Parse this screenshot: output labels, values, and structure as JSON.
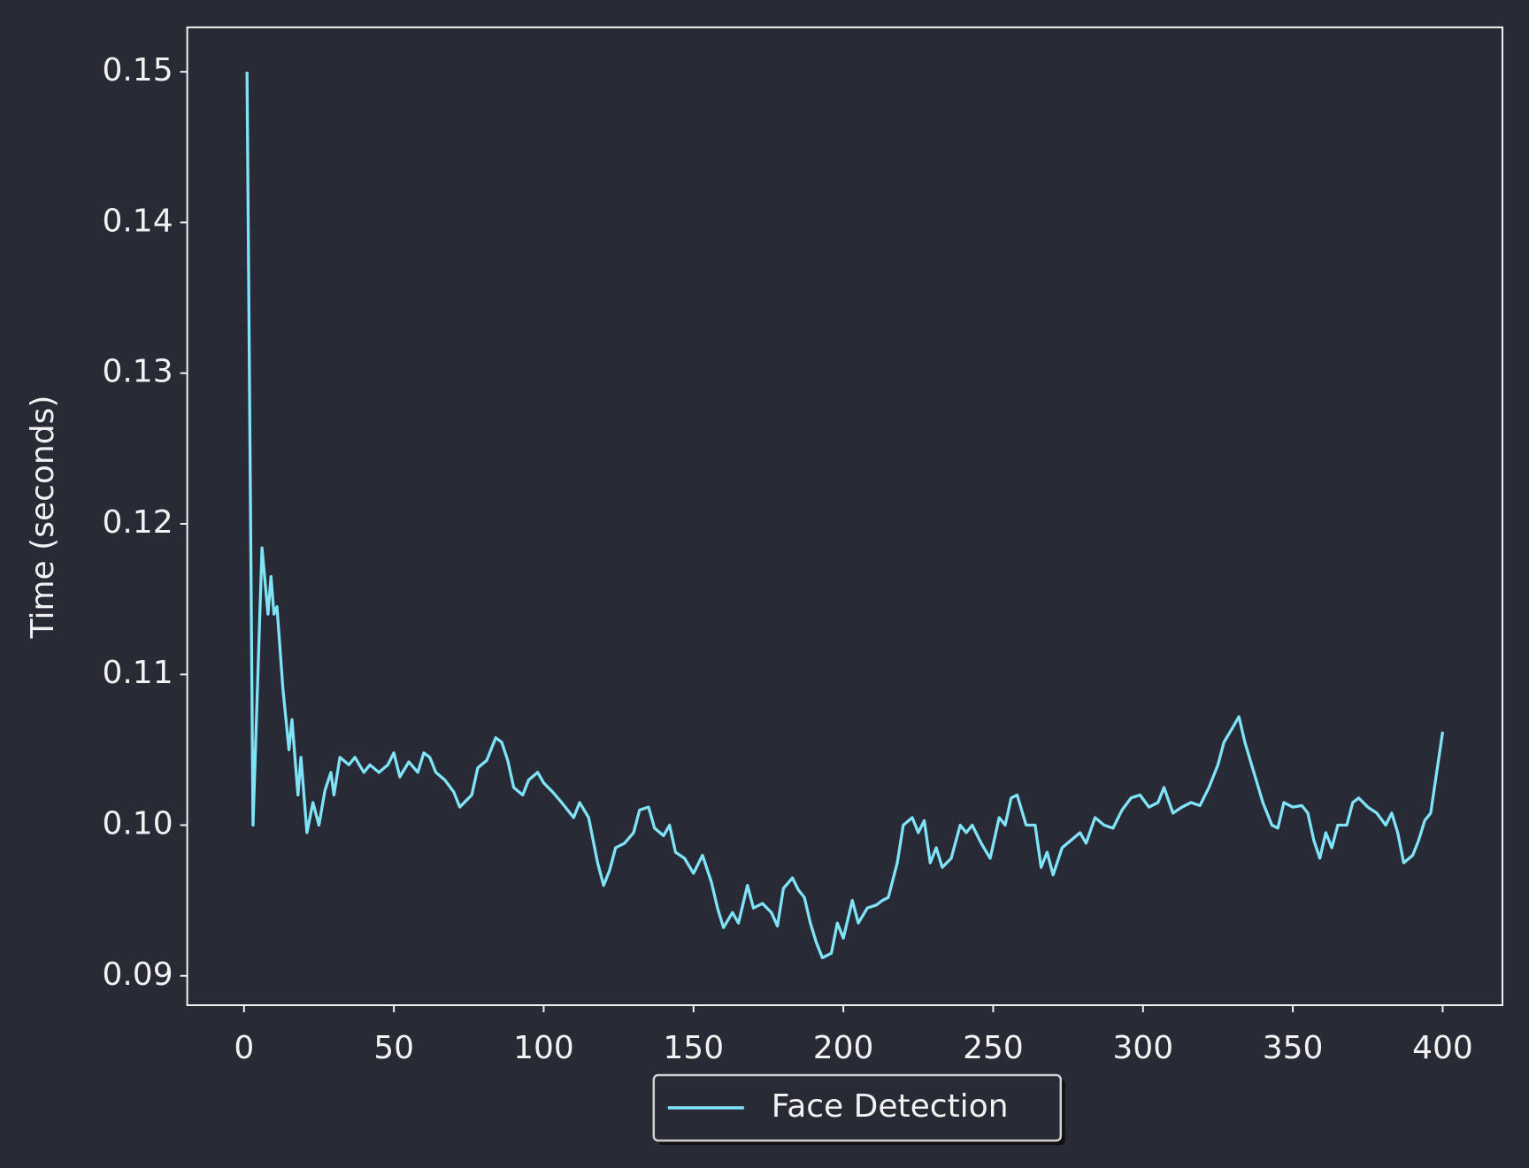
{
  "chart_data": {
    "type": "line",
    "y_label": "Time (seconds)",
    "x": [
      1,
      3,
      6,
      8,
      9,
      10,
      11,
      13,
      15,
      16,
      18,
      19,
      21,
      23,
      25,
      27,
      29,
      30,
      32,
      35,
      37,
      40,
      42,
      45,
      48,
      50,
      52,
      55,
      58,
      60,
      62,
      64,
      67,
      70,
      72,
      76,
      78,
      81,
      84,
      86,
      88,
      90,
      93,
      95,
      98,
      100,
      103,
      106,
      108,
      110,
      112,
      115,
      118,
      120,
      122,
      124,
      127,
      130,
      132,
      135,
      137,
      140,
      142,
      144,
      147,
      150,
      153,
      156,
      158,
      160,
      163,
      165,
      168,
      170,
      173,
      176,
      178,
      180,
      183,
      185,
      187,
      189,
      191,
      193,
      196,
      198,
      200,
      203,
      205,
      208,
      211,
      213,
      215,
      218,
      220,
      223,
      225,
      227,
      229,
      231,
      233,
      236,
      239,
      241,
      243,
      246,
      249,
      252,
      254,
      256,
      258,
      261,
      264,
      266,
      268,
      270,
      273,
      276,
      279,
      281,
      284,
      287,
      290,
      293,
      296,
      299,
      302,
      305,
      307,
      310,
      313,
      316,
      319,
      322,
      325,
      327,
      330,
      332,
      334,
      337,
      340,
      343,
      345,
      347,
      350,
      353,
      355,
      357,
      359,
      361,
      363,
      365,
      368,
      370,
      372,
      375,
      378,
      381,
      383,
      385,
      387,
      390,
      392,
      394,
      396,
      398,
      400
    ],
    "series": [
      {
        "name": "Face Detection",
        "color": "#80e4f8",
        "values": [
          0.15,
          0.1,
          0.1184,
          0.114,
          0.1165,
          0.114,
          0.1145,
          0.109,
          0.105,
          0.107,
          0.102,
          0.1045,
          0.0995,
          0.1015,
          0.1,
          0.1023,
          0.1035,
          0.102,
          0.1045,
          0.104,
          0.1045,
          0.1035,
          0.104,
          0.1035,
          0.104,
          0.1048,
          0.1032,
          0.1042,
          0.1035,
          0.1048,
          0.1045,
          0.1035,
          0.103,
          0.1022,
          0.1012,
          0.102,
          0.1038,
          0.1043,
          0.1058,
          0.1055,
          0.1043,
          0.1025,
          0.102,
          0.103,
          0.1035,
          0.1028,
          0.1022,
          0.1015,
          0.101,
          0.1005,
          0.1015,
          0.1005,
          0.0975,
          0.096,
          0.097,
          0.0985,
          0.0988,
          0.0995,
          0.101,
          0.1012,
          0.0998,
          0.0993,
          0.1,
          0.0982,
          0.0978,
          0.0968,
          0.098,
          0.0962,
          0.0945,
          0.0932,
          0.0942,
          0.0935,
          0.096,
          0.0945,
          0.0948,
          0.0942,
          0.0933,
          0.0958,
          0.0965,
          0.0957,
          0.0952,
          0.0935,
          0.0922,
          0.0912,
          0.0915,
          0.0935,
          0.0925,
          0.095,
          0.0935,
          0.0945,
          0.0947,
          0.095,
          0.0952,
          0.0975,
          0.1,
          0.1005,
          0.0995,
          0.1003,
          0.0975,
          0.0985,
          0.0972,
          0.0978,
          0.1,
          0.0995,
          0.1,
          0.0988,
          0.0978,
          0.1005,
          0.1,
          0.1018,
          0.102,
          0.1,
          0.1,
          0.0972,
          0.0982,
          0.0967,
          0.0985,
          0.099,
          0.0995,
          0.0988,
          0.1005,
          0.1,
          0.0998,
          0.101,
          0.1018,
          0.102,
          0.1012,
          0.1015,
          0.1025,
          0.1008,
          0.1012,
          0.1015,
          0.1013,
          0.1025,
          0.104,
          0.1055,
          0.1065,
          0.1072,
          0.1055,
          0.1035,
          0.1015,
          0.1,
          0.0998,
          0.1015,
          0.1012,
          0.1013,
          0.1008,
          0.099,
          0.0978,
          0.0995,
          0.0985,
          0.1,
          0.1,
          0.1015,
          0.1018,
          0.1012,
          0.1008,
          0.1,
          0.1008,
          0.0995,
          0.0975,
          0.098,
          0.099,
          0.1003,
          0.1008,
          0.1035,
          0.1062
        ]
      }
    ],
    "xlim": [
      -18.95,
      419.95
    ],
    "ylim": [
      0.08805,
      0.15295
    ],
    "xticks": [
      0,
      50,
      100,
      150,
      200,
      250,
      300,
      350,
      400
    ],
    "yticks": [
      0.09,
      {
        "value": 0.1,
        "label": "0.10"
      },
      0.11,
      0.12,
      0.13,
      0.14,
      0.15
    ],
    "legend": "lower center"
  }
}
